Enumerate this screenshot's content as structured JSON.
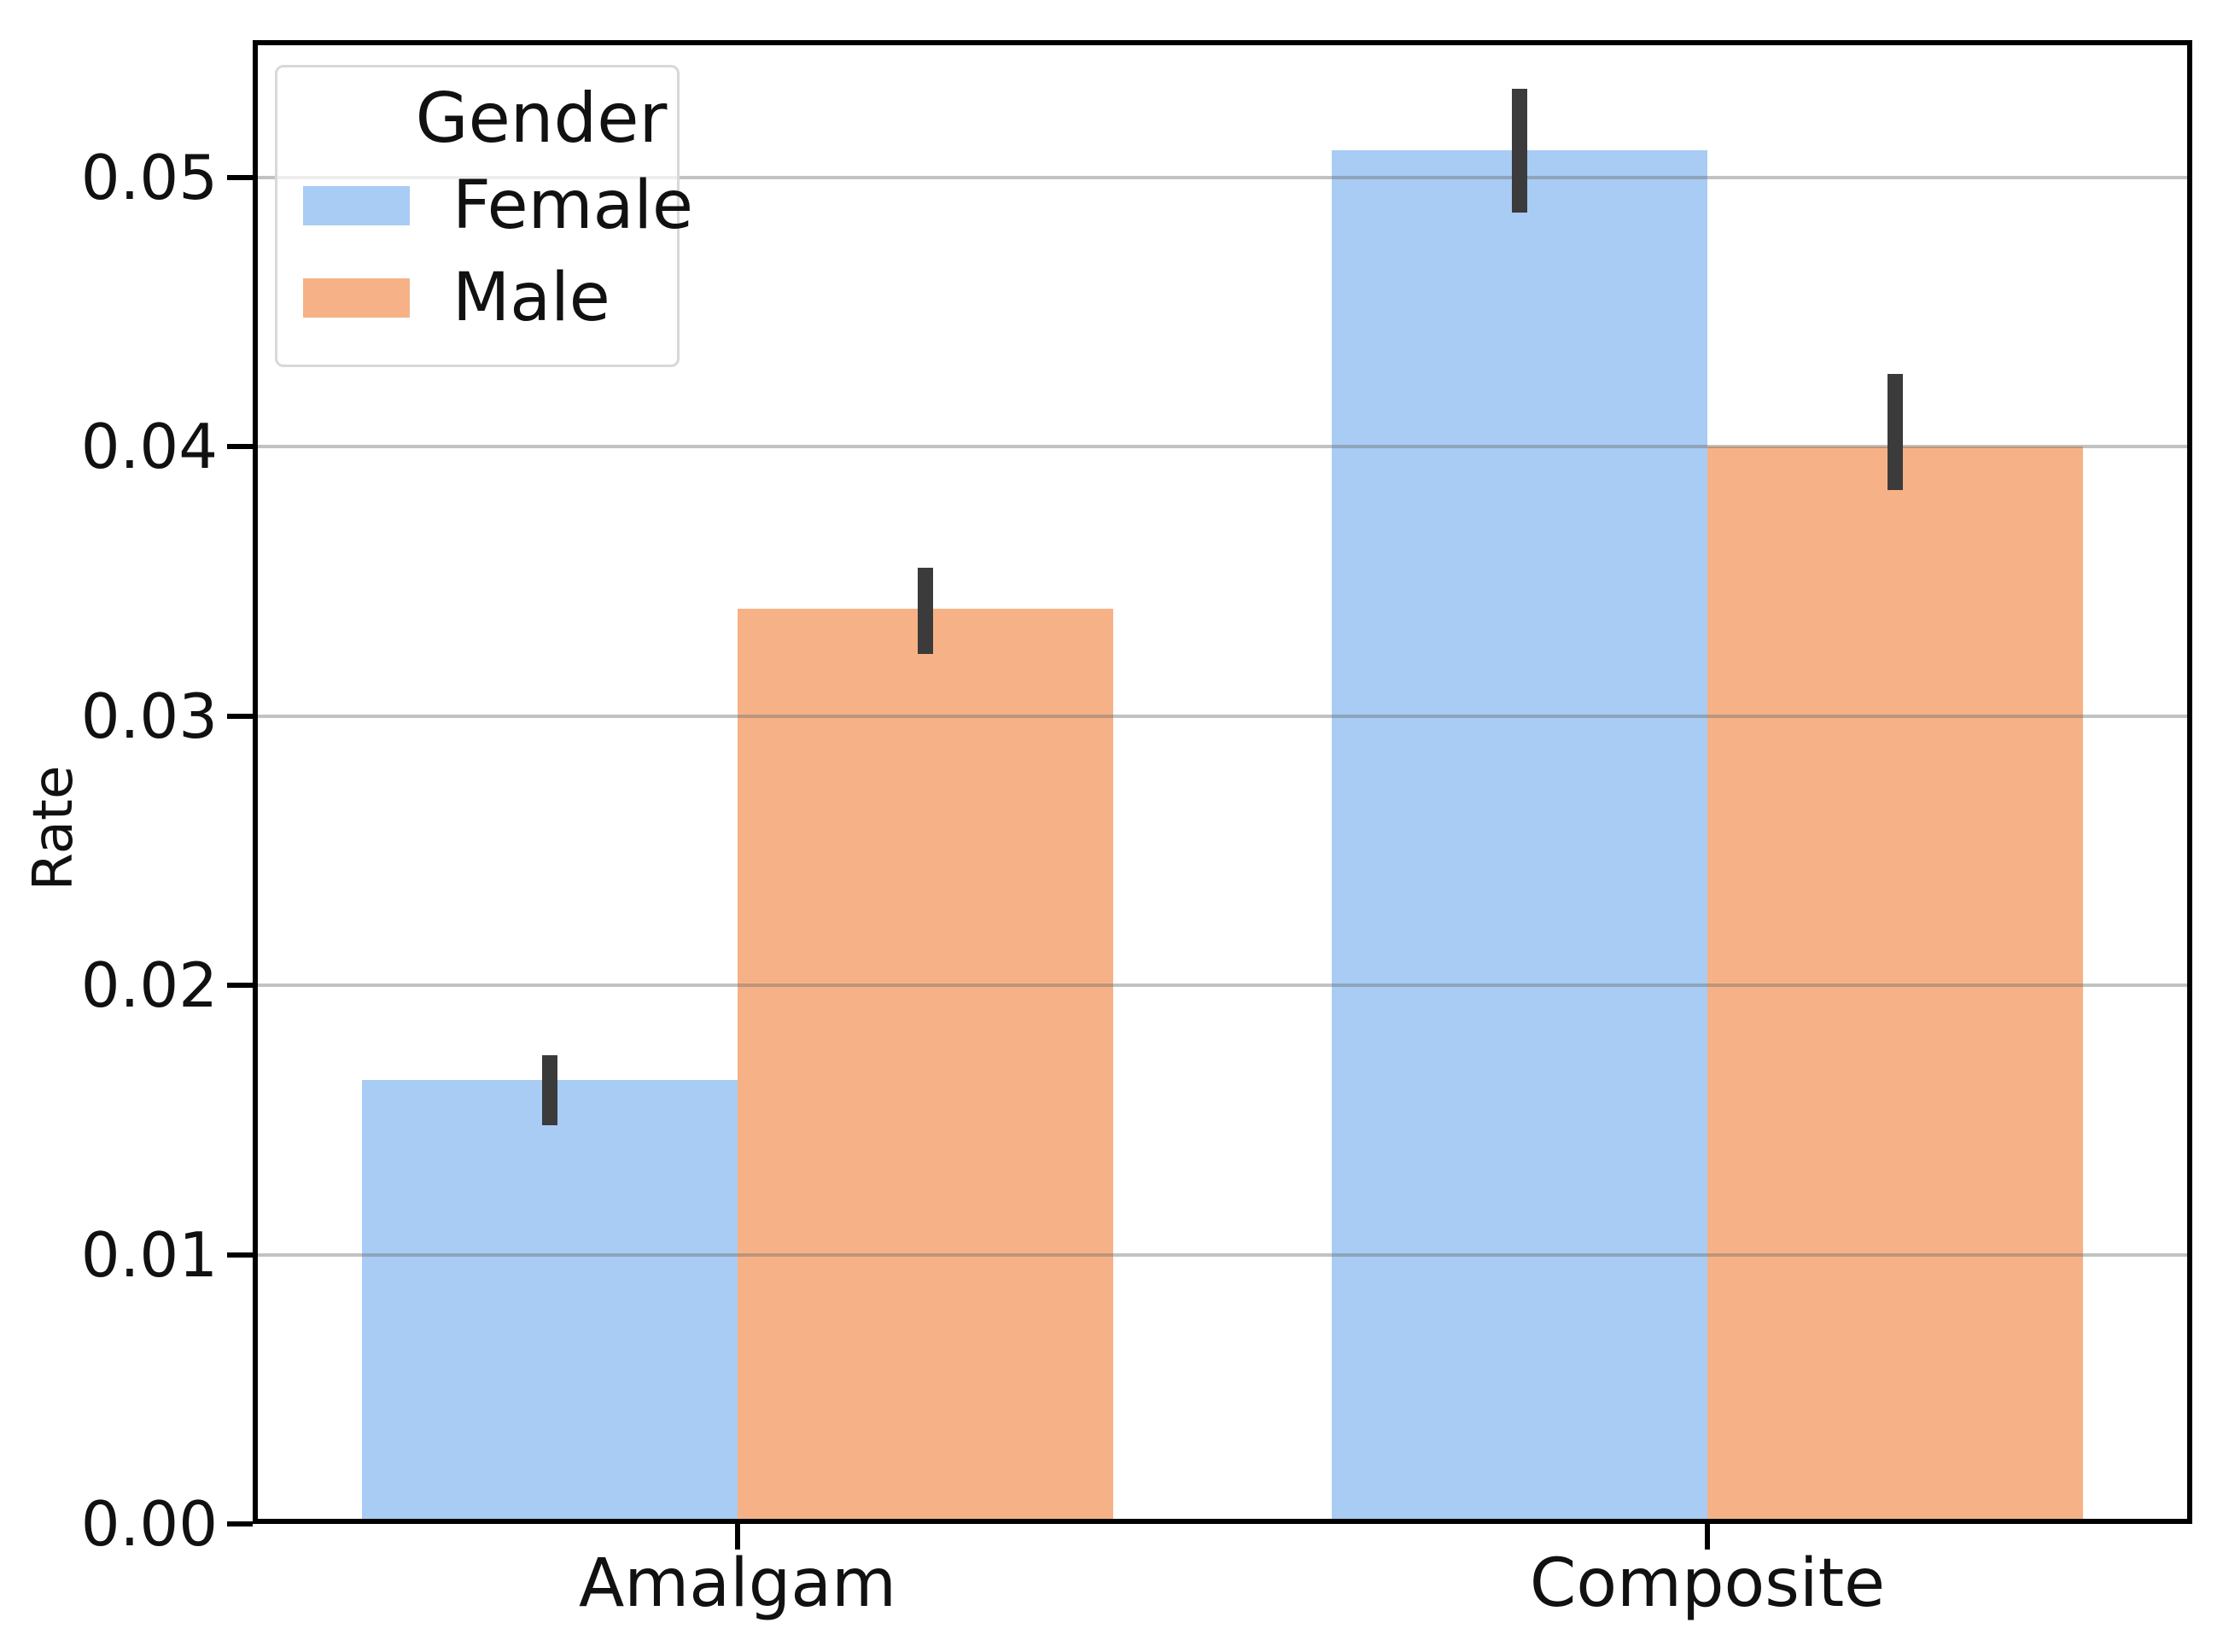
{
  "chart_data": {
    "type": "bar",
    "title": "",
    "categories": [
      "Amalgam",
      "Composite"
    ],
    "series": [
      {
        "name": "Female",
        "color": "#a8ccf3",
        "values": [
          0.0165,
          0.051
        ],
        "error_low": [
          0.0148,
          0.0487
        ],
        "error_high": [
          0.0174,
          0.0533
        ]
      },
      {
        "name": "Male",
        "color": "#f6b286",
        "values": [
          0.034,
          0.04
        ],
        "error_low": [
          0.0323,
          0.0384
        ],
        "error_high": [
          0.0355,
          0.0427
        ]
      }
    ],
    "xlabel": "",
    "ylabel": "Rate",
    "yticks": [
      0.0,
      0.01,
      0.02,
      0.03,
      0.04,
      0.05
    ],
    "ytick_labels": [
      "0.00",
      "0.01",
      "0.02",
      "0.03",
      "0.04",
      "0.05"
    ],
    "ylim": [
      0,
      0.0551
    ],
    "legend_title": "Gender",
    "legend_position": "upper-left",
    "grid": "horizontal",
    "error_bar_color": "#3b3b3b",
    "gridline_color": "#c8c8c8",
    "axis_color": "#000000"
  }
}
